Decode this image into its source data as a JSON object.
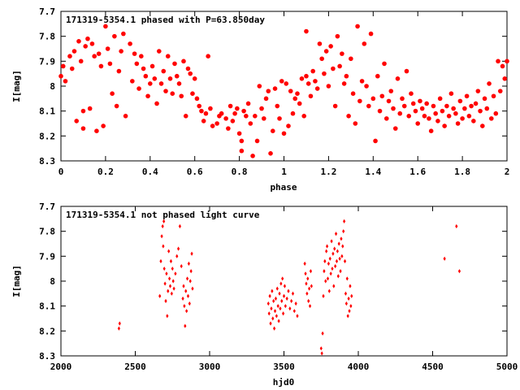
{
  "chart_data": [
    {
      "type": "scatter",
      "title": "171319-5354.1 phased with P=63.850day",
      "xlabel": "phase",
      "ylabel": "I[mag]",
      "xlim": [
        0,
        2
      ],
      "ylim": [
        7.7,
        8.3
      ],
      "y_inverted": true,
      "grid": false,
      "x_ticks": [
        "0",
        "0.2",
        "0.4",
        "0.6",
        "0.8",
        "1",
        "1.2",
        "1.4",
        "1.6",
        "1.8",
        "2"
      ],
      "y_ticks": [
        "7.7",
        "7.8",
        "7.9",
        "8",
        "8.1",
        "8.2",
        "8.3"
      ],
      "marker_color": "#ff0000",
      "points": [
        [
          0.0,
          7.96
        ],
        [
          0.01,
          7.92
        ],
        [
          0.02,
          7.98
        ],
        [
          0.04,
          7.88
        ],
        [
          0.05,
          7.93
        ],
        [
          0.06,
          7.86
        ],
        [
          0.07,
          8.14
        ],
        [
          0.08,
          7.82
        ],
        [
          0.09,
          7.9
        ],
        [
          0.1,
          8.17
        ],
        [
          0.1,
          8.1
        ],
        [
          0.11,
          7.84
        ],
        [
          0.12,
          7.81
        ],
        [
          0.13,
          8.09
        ],
        [
          0.14,
          7.83
        ],
        [
          0.15,
          7.88
        ],
        [
          0.16,
          8.18
        ],
        [
          0.17,
          7.87
        ],
        [
          0.18,
          7.92
        ],
        [
          0.19,
          8.16
        ],
        [
          0.2,
          7.76
        ],
        [
          0.21,
          7.85
        ],
        [
          0.22,
          7.91
        ],
        [
          0.23,
          8.03
        ],
        [
          0.24,
          7.8
        ],
        [
          0.25,
          8.08
        ],
        [
          0.26,
          7.94
        ],
        [
          0.27,
          7.86
        ],
        [
          0.28,
          7.79
        ],
        [
          0.29,
          8.12
        ],
        [
          0.31,
          7.83
        ],
        [
          0.32,
          7.98
        ],
        [
          0.33,
          7.87
        ],
        [
          0.34,
          7.91
        ],
        [
          0.35,
          8.01
        ],
        [
          0.36,
          7.88
        ],
        [
          0.37,
          7.93
        ],
        [
          0.38,
          7.96
        ],
        [
          0.39,
          8.04
        ],
        [
          0.4,
          7.99
        ],
        [
          0.41,
          7.92
        ],
        [
          0.42,
          7.97
        ],
        [
          0.43,
          8.07
        ],
        [
          0.44,
          7.86
        ],
        [
          0.45,
          7.99
        ],
        [
          0.46,
          7.94
        ],
        [
          0.47,
          8.02
        ],
        [
          0.48,
          7.88
        ],
        [
          0.49,
          7.97
        ],
        [
          0.5,
          8.03
        ],
        [
          0.51,
          7.91
        ],
        [
          0.52,
          7.96
        ],
        [
          0.53,
          7.99
        ],
        [
          0.54,
          8.04
        ],
        [
          0.55,
          7.9
        ],
        [
          0.56,
          8.12
        ],
        [
          0.57,
          7.93
        ],
        [
          0.58,
          7.95
        ],
        [
          0.59,
          8.03
        ],
        [
          0.6,
          7.97
        ],
        [
          0.61,
          8.05
        ],
        [
          0.62,
          8.08
        ],
        [
          0.63,
          8.1
        ],
        [
          0.64,
          8.14
        ],
        [
          0.65,
          8.11
        ],
        [
          0.66,
          7.88
        ],
        [
          0.67,
          8.09
        ],
        [
          0.68,
          8.16
        ],
        [
          0.7,
          8.15
        ],
        [
          0.71,
          8.12
        ],
        [
          0.72,
          8.11
        ],
        [
          0.74,
          8.13
        ],
        [
          0.75,
          8.17
        ],
        [
          0.76,
          8.08
        ],
        [
          0.77,
          8.14
        ],
        [
          0.78,
          8.11
        ],
        [
          0.79,
          8.09
        ],
        [
          0.8,
          8.19
        ],
        [
          0.81,
          8.22
        ],
        [
          0.81,
          8.26
        ],
        [
          0.82,
          8.1
        ],
        [
          0.83,
          8.12
        ],
        [
          0.84,
          8.07
        ],
        [
          0.85,
          8.15
        ],
        [
          0.86,
          8.28
        ],
        [
          0.87,
          8.12
        ],
        [
          0.88,
          8.22
        ],
        [
          0.89,
          8.0
        ],
        [
          0.9,
          8.09
        ],
        [
          0.91,
          8.13
        ],
        [
          0.92,
          8.05
        ],
        [
          0.93,
          8.02
        ],
        [
          0.94,
          8.27
        ],
        [
          0.95,
          8.18
        ],
        [
          0.96,
          8.01
        ],
        [
          0.97,
          8.08
        ],
        [
          0.98,
          8.13
        ],
        [
          0.99,
          7.98
        ],
        [
          1.0,
          8.19
        ],
        [
          1.01,
          7.99
        ],
        [
          1.02,
          8.16
        ],
        [
          1.03,
          8.02
        ],
        [
          1.04,
          8.11
        ],
        [
          1.05,
          8.05
        ],
        [
          1.06,
          8.03
        ],
        [
          1.07,
          8.07
        ],
        [
          1.08,
          7.97
        ],
        [
          1.09,
          8.12
        ],
        [
          1.1,
          7.96
        ],
        [
          1.1,
          7.78
        ],
        [
          1.11,
          7.99
        ],
        [
          1.12,
          8.04
        ],
        [
          1.13,
          7.94
        ],
        [
          1.14,
          7.98
        ],
        [
          1.15,
          8.01
        ],
        [
          1.16,
          7.83
        ],
        [
          1.17,
          7.89
        ],
        [
          1.18,
          7.95
        ],
        [
          1.19,
          7.86
        ],
        [
          1.2,
          8.0
        ],
        [
          1.21,
          7.84
        ],
        [
          1.22,
          7.93
        ],
        [
          1.23,
          8.08
        ],
        [
          1.24,
          7.8
        ],
        [
          1.25,
          7.92
        ],
        [
          1.26,
          7.87
        ],
        [
          1.27,
          7.99
        ],
        [
          1.28,
          7.96
        ],
        [
          1.29,
          8.12
        ],
        [
          1.3,
          7.89
        ],
        [
          1.31,
          8.03
        ],
        [
          1.32,
          8.15
        ],
        [
          1.33,
          7.76
        ],
        [
          1.34,
          8.06
        ],
        [
          1.35,
          7.98
        ],
        [
          1.36,
          7.83
        ],
        [
          1.37,
          8.0
        ],
        [
          1.38,
          8.08
        ],
        [
          1.39,
          7.79
        ],
        [
          1.4,
          8.05
        ],
        [
          1.41,
          8.22
        ],
        [
          1.42,
          7.96
        ],
        [
          1.43,
          8.1
        ],
        [
          1.44,
          8.04
        ],
        [
          1.45,
          7.91
        ],
        [
          1.46,
          8.13
        ],
        [
          1.47,
          8.06
        ],
        [
          1.48,
          8.02
        ],
        [
          1.49,
          8.09
        ],
        [
          1.5,
          8.17
        ],
        [
          1.51,
          7.97
        ],
        [
          1.52,
          8.11
        ],
        [
          1.53,
          8.05
        ],
        [
          1.54,
          8.08
        ],
        [
          1.55,
          7.94
        ],
        [
          1.56,
          8.12
        ],
        [
          1.57,
          8.03
        ],
        [
          1.58,
          8.07
        ],
        [
          1.59,
          8.1
        ],
        [
          1.6,
          8.15
        ],
        [
          1.61,
          8.06
        ],
        [
          1.62,
          8.09
        ],
        [
          1.63,
          8.12
        ],
        [
          1.64,
          8.07
        ],
        [
          1.65,
          8.13
        ],
        [
          1.66,
          8.18
        ],
        [
          1.67,
          8.08
        ],
        [
          1.68,
          8.11
        ],
        [
          1.69,
          8.14
        ],
        [
          1.7,
          8.05
        ],
        [
          1.71,
          8.1
        ],
        [
          1.72,
          8.16
        ],
        [
          1.73,
          8.08
        ],
        [
          1.74,
          8.12
        ],
        [
          1.75,
          8.03
        ],
        [
          1.76,
          8.09
        ],
        [
          1.77,
          8.11
        ],
        [
          1.78,
          8.15
        ],
        [
          1.79,
          8.06
        ],
        [
          1.8,
          8.13
        ],
        [
          1.81,
          8.09
        ],
        [
          1.82,
          8.04
        ],
        [
          1.83,
          8.12
        ],
        [
          1.84,
          8.08
        ],
        [
          1.85,
          8.14
        ],
        [
          1.86,
          8.07
        ],
        [
          1.87,
          8.02
        ],
        [
          1.88,
          8.1
        ],
        [
          1.89,
          8.16
        ],
        [
          1.9,
          8.05
        ],
        [
          1.91,
          8.09
        ],
        [
          1.92,
          7.99
        ],
        [
          1.93,
          8.13
        ],
        [
          1.94,
          8.04
        ],
        [
          1.95,
          8.11
        ],
        [
          1.96,
          7.9
        ],
        [
          1.97,
          8.02
        ],
        [
          1.98,
          7.92
        ],
        [
          1.99,
          7.97
        ],
        [
          2.0,
          7.9
        ]
      ]
    },
    {
      "type": "scatter",
      "title": "171319-5354.1 not phased light curve",
      "xlabel": "hjd0",
      "ylabel": "I[mag]",
      "xlim": [
        2000,
        5000
      ],
      "ylim": [
        7.7,
        8.3
      ],
      "y_inverted": true,
      "grid": false,
      "x_ticks": [
        "2000",
        "2500",
        "3000",
        "3500",
        "4000",
        "4500",
        "5000"
      ],
      "y_ticks": [
        "7.7",
        "7.8",
        "7.9",
        "8",
        "8.1",
        "8.2",
        "8.3"
      ],
      "marker_color": "#ff0000",
      "points": [
        [
          2390,
          8.19
        ],
        [
          2395,
          8.17
        ],
        [
          2665,
          8.06
        ],
        [
          2672,
          7.92
        ],
        [
          2678,
          7.82
        ],
        [
          2684,
          7.78
        ],
        [
          2688,
          7.86
        ],
        [
          2692,
          7.76
        ],
        [
          2695,
          7.95
        ],
        [
          2700,
          8.01
        ],
        [
          2705,
          8.08
        ],
        [
          2710,
          7.97
        ],
        [
          2715,
          8.14
        ],
        [
          2720,
          8.04
        ],
        [
          2725,
          7.88
        ],
        [
          2730,
          7.99
        ],
        [
          2735,
          8.02
        ],
        [
          2740,
          7.92
        ],
        [
          2745,
          8.05
        ],
        [
          2750,
          7.95
        ],
        [
          2755,
          8.0
        ],
        [
          2760,
          8.03
        ],
        [
          2770,
          7.97
        ],
        [
          2780,
          7.9
        ],
        [
          2790,
          7.87
        ],
        [
          2800,
          7.78
        ],
        [
          2810,
          7.94
        ],
        [
          2820,
          8.07
        ],
        [
          2825,
          8.02
        ],
        [
          2830,
          8.1
        ],
        [
          2835,
          8.18
        ],
        [
          2840,
          8.04
        ],
        [
          2845,
          8.12
        ],
        [
          2850,
          7.99
        ],
        [
          2855,
          8.06
        ],
        [
          2860,
          7.93
        ],
        [
          2865,
          8.09
        ],
        [
          2870,
          8.0
        ],
        [
          2875,
          7.96
        ],
        [
          2880,
          7.89
        ],
        [
          2885,
          8.03
        ],
        [
          3395,
          8.09
        ],
        [
          3400,
          8.13
        ],
        [
          3405,
          8.06
        ],
        [
          3410,
          8.17
        ],
        [
          3415,
          8.11
        ],
        [
          3420,
          8.04
        ],
        [
          3425,
          8.15
        ],
        [
          3430,
          8.08
        ],
        [
          3435,
          8.19
        ],
        [
          3440,
          8.12
        ],
        [
          3445,
          8.07
        ],
        [
          3450,
          8.14
        ],
        [
          3455,
          8.03
        ],
        [
          3460,
          8.1
        ],
        [
          3465,
          8.16
        ],
        [
          3470,
          8.05
        ],
        [
          3475,
          8.11
        ],
        [
          3480,
          8.01
        ],
        [
          3485,
          8.08
        ],
        [
          3490,
          7.99
        ],
        [
          3495,
          8.13
        ],
        [
          3500,
          8.06
        ],
        [
          3505,
          8.02
        ],
        [
          3510,
          8.1
        ],
        [
          3520,
          8.07
        ],
        [
          3530,
          8.04
        ],
        [
          3540,
          8.11
        ],
        [
          3550,
          8.08
        ],
        [
          3560,
          8.05
        ],
        [
          3570,
          8.12
        ],
        [
          3580,
          8.09
        ],
        [
          3590,
          8.14
        ],
        [
          3640,
          7.93
        ],
        [
          3645,
          7.97
        ],
        [
          3650,
          8.01
        ],
        [
          3655,
          8.05
        ],
        [
          3660,
          7.99
        ],
        [
          3665,
          8.08
        ],
        [
          3670,
          8.03
        ],
        [
          3675,
          8.1
        ],
        [
          3680,
          7.96
        ],
        [
          3685,
          8.02
        ],
        [
          3750,
          8.27
        ],
        [
          3755,
          8.29
        ],
        [
          3760,
          8.21
        ],
        [
          3765,
          8.06
        ],
        [
          3770,
          7.96
        ],
        [
          3775,
          7.92
        ],
        [
          3780,
          8.0
        ],
        [
          3785,
          7.88
        ],
        [
          3790,
          7.86
        ],
        [
          3795,
          7.99
        ],
        [
          3800,
          7.93
        ],
        [
          3805,
          8.04
        ],
        [
          3810,
          7.91
        ],
        [
          3815,
          7.97
        ],
        [
          3820,
          7.84
        ],
        [
          3825,
          7.95
        ],
        [
          3830,
          7.89
        ],
        [
          3835,
          8.02
        ],
        [
          3840,
          7.87
        ],
        [
          3845,
          7.94
        ],
        [
          3850,
          7.81
        ],
        [
          3855,
          7.92
        ],
        [
          3860,
          7.88
        ],
        [
          3865,
          7.98
        ],
        [
          3870,
          7.85
        ],
        [
          3875,
          7.91
        ],
        [
          3880,
          7.96
        ],
        [
          3885,
          7.83
        ],
        [
          3890,
          7.9
        ],
        [
          3895,
          7.86
        ],
        [
          3900,
          7.8
        ],
        [
          3905,
          7.76
        ],
        [
          3910,
          7.92
        ],
        [
          3915,
          8.05
        ],
        [
          3920,
          8.09
        ],
        [
          3925,
          7.99
        ],
        [
          3930,
          8.14
        ],
        [
          3935,
          8.07
        ],
        [
          3940,
          8.12
        ],
        [
          3945,
          8.02
        ],
        [
          3950,
          8.1
        ],
        [
          3955,
          8.06
        ],
        [
          4580,
          7.91
        ],
        [
          4660,
          7.78
        ],
        [
          4680,
          7.96
        ]
      ]
    }
  ]
}
